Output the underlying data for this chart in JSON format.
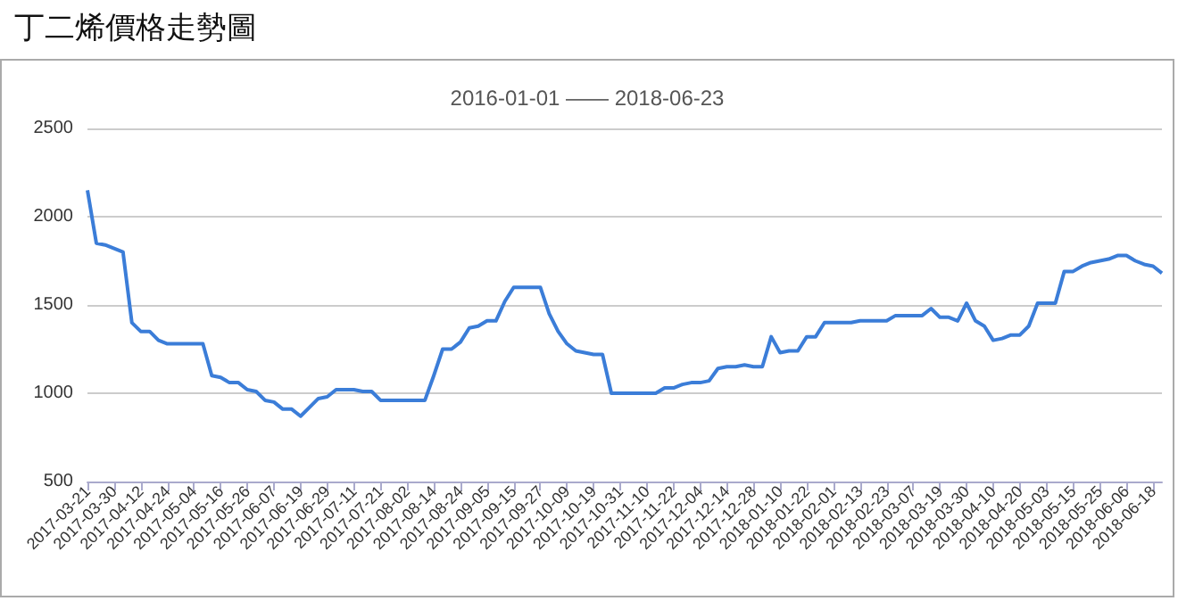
{
  "chart_data": {
    "type": "line",
    "title": "丁二烯價格走勢圖",
    "subtitle": "2016-01-01 —— 2018-06-23",
    "categories": [
      "2017-03-21",
      null,
      null,
      "2017-03-30",
      null,
      null,
      "2017-04-12",
      null,
      null,
      "2017-04-24",
      null,
      null,
      "2017-05-04",
      null,
      null,
      "2017-05-16",
      null,
      null,
      "2017-05-26",
      null,
      null,
      "2017-06-07",
      null,
      null,
      "2017-06-19",
      null,
      null,
      "2017-06-29",
      null,
      null,
      "2017-07-11",
      null,
      null,
      "2017-07-21",
      null,
      null,
      "2017-08-02",
      null,
      null,
      "2017-08-14",
      null,
      null,
      "2017-08-24",
      null,
      null,
      "2017-09-05",
      null,
      null,
      "2017-09-15",
      null,
      null,
      "2017-09-27",
      null,
      null,
      "2017-10-09",
      null,
      null,
      "2017-10-19",
      null,
      null,
      "2017-10-31",
      null,
      null,
      "2017-11-10",
      null,
      null,
      "2017-11-22",
      null,
      null,
      "2017-12-04",
      null,
      null,
      "2017-12-14",
      null,
      null,
      "2017-12-28",
      null,
      null,
      "2018-01-10",
      null,
      null,
      "2018-01-22",
      null,
      null,
      "2018-02-01",
      null,
      null,
      "2018-02-13",
      null,
      null,
      "2018-02-23",
      null,
      null,
      "2018-03-07",
      null,
      null,
      "2018-03-19",
      null,
      null,
      "2018-03-30",
      null,
      null,
      "2018-04-10",
      null,
      null,
      "2018-04-20",
      null,
      null,
      "2018-05-03",
      null,
      null,
      "2018-05-15",
      null,
      null,
      "2018-05-25",
      null,
      null,
      "2018-06-06",
      null,
      null,
      "2018-06-18",
      null
    ],
    "values": [
      2150,
      1850,
      1840,
      1820,
      1800,
      1400,
      1350,
      1350,
      1300,
      1280,
      1280,
      1280,
      1280,
      1280,
      1100,
      1090,
      1060,
      1060,
      1020,
      1010,
      960,
      950,
      910,
      910,
      870,
      920,
      970,
      980,
      1020,
      1020,
      1020,
      1010,
      1010,
      960,
      960,
      960,
      960,
      960,
      960,
      1100,
      1250,
      1250,
      1290,
      1370,
      1380,
      1410,
      1410,
      1520,
      1600,
      1600,
      1600,
      1600,
      1450,
      1350,
      1280,
      1240,
      1230,
      1220,
      1220,
      1000,
      1000,
      1000,
      1000,
      1000,
      1000,
      1030,
      1030,
      1050,
      1060,
      1060,
      1070,
      1140,
      1150,
      1150,
      1160,
      1150,
      1150,
      1320,
      1230,
      1240,
      1240,
      1320,
      1320,
      1400,
      1400,
      1400,
      1400,
      1410,
      1410,
      1410,
      1410,
      1440,
      1440,
      1440,
      1440,
      1480,
      1430,
      1430,
      1410,
      1510,
      1410,
      1380,
      1300,
      1310,
      1330,
      1330,
      1380,
      1510,
      1510,
      1510,
      1690,
      1690,
      1720,
      1740,
      1750,
      1760,
      1780,
      1780,
      1750,
      1730,
      1720,
      1680
    ],
    "color": "#3b7dd8",
    "ylim": [
      500,
      2500
    ],
    "yticks": [
      500,
      1000,
      1500,
      2000,
      2500
    ],
    "grid": "y",
    "marker": "none"
  }
}
